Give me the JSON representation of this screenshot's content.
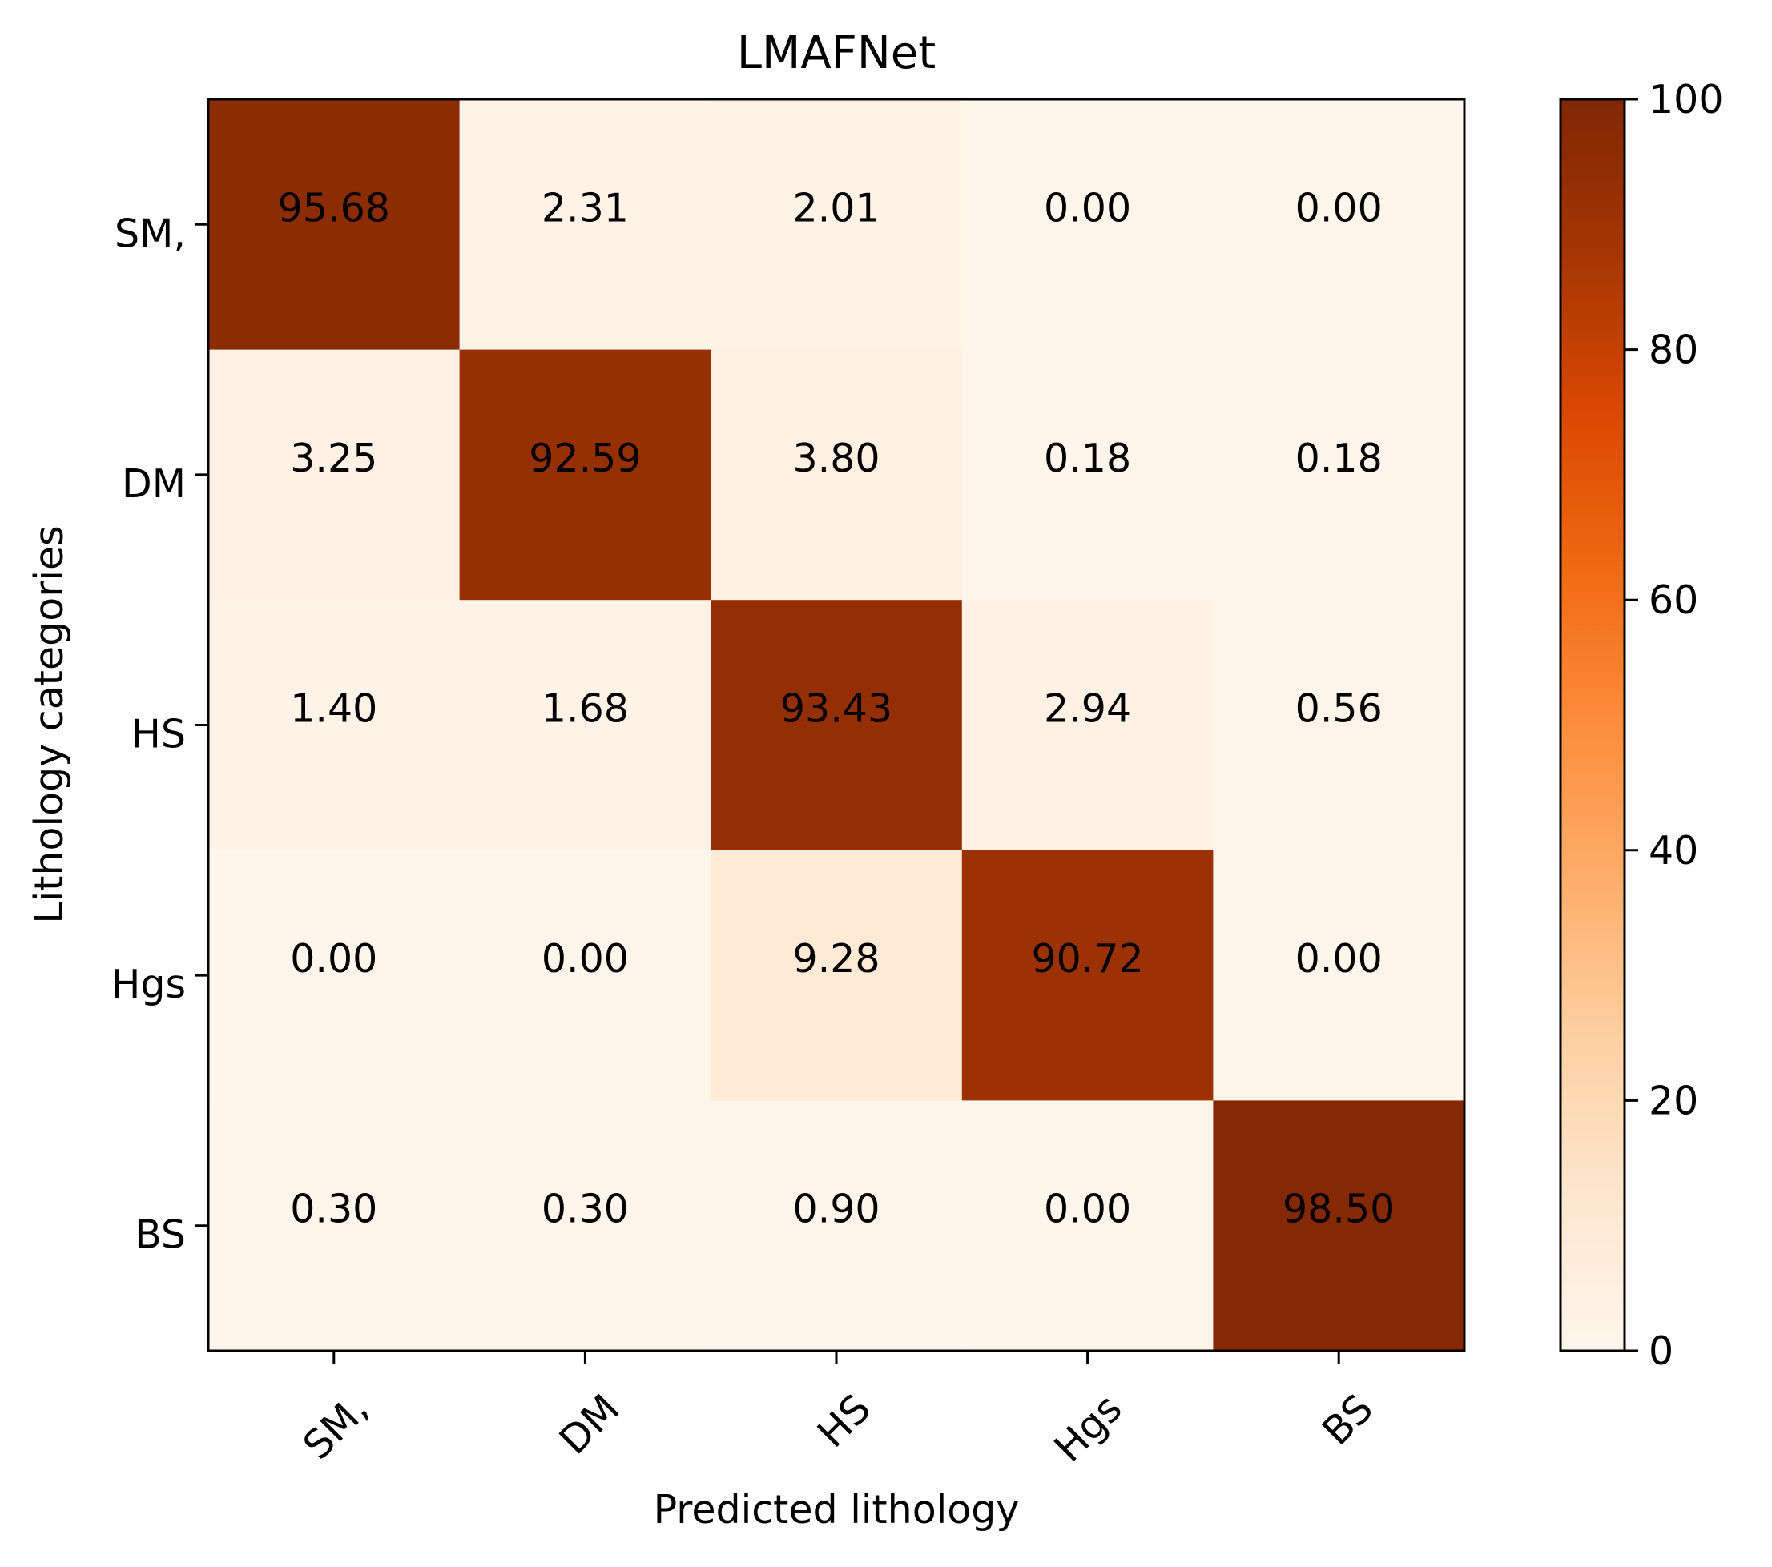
{
  "chart_data": {
    "type": "heatmap",
    "title": "LMAFNet",
    "xlabel": "Predicted lithology",
    "ylabel": "Lithology categories",
    "row_labels": [
      "SM,",
      "DM",
      "HS",
      "Hgs",
      "BS"
    ],
    "col_labels": [
      "SM,",
      "DM",
      "HS",
      "Hgs",
      "BS"
    ],
    "values": [
      [
        95.68,
        2.31,
        2.01,
        0.0,
        0.0
      ],
      [
        3.25,
        92.59,
        3.8,
        0.18,
        0.18
      ],
      [
        1.4,
        1.68,
        93.43,
        2.94,
        0.56
      ],
      [
        0.0,
        0.0,
        9.28,
        90.72,
        0.0
      ],
      [
        0.3,
        0.3,
        0.9,
        0.0,
        98.5
      ]
    ],
    "value_format_decimals": 2,
    "colorbar": {
      "colormap": "Oranges",
      "range": [
        0,
        100
      ],
      "ticks": [
        0,
        20,
        40,
        60,
        80,
        100
      ]
    },
    "colors": {
      "low": "#fff5eb",
      "high": "#7f2704",
      "text_dark": "#000000",
      "text_light": "#ffffff"
    },
    "grid": false,
    "legend": "none"
  }
}
